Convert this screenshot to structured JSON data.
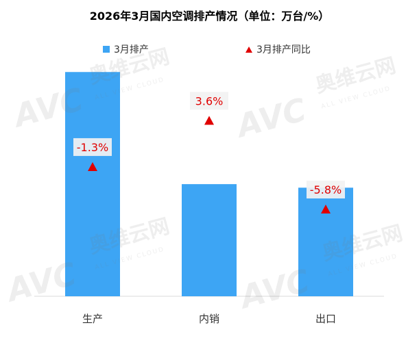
{
  "chart_data": {
    "type": "bar",
    "title": "2026年3月国内空调排产情况（单位：万台/%）",
    "categories": [
      "生产",
      "内销",
      "出口"
    ],
    "series": [
      {
        "name": "3月排产",
        "kind": "bar",
        "color": "#3da5f4",
        "values": [
          1900,
          950,
          920
        ]
      },
      {
        "name": "3月排产同比",
        "kind": "marker",
        "color": "#e00000",
        "values": [
          -1.3,
          3.6,
          -5.8
        ],
        "labels": [
          "-1.3%",
          "3.6%",
          "-5.8%"
        ]
      }
    ],
    "ylim": [
      0,
      2000
    ],
    "y2lim": [
      -15,
      10
    ],
    "grid": false,
    "legend": "top"
  },
  "watermark": {
    "brand": "AVC",
    "cn": "奥维云网",
    "en": "ALL VIEW CLOUD"
  }
}
